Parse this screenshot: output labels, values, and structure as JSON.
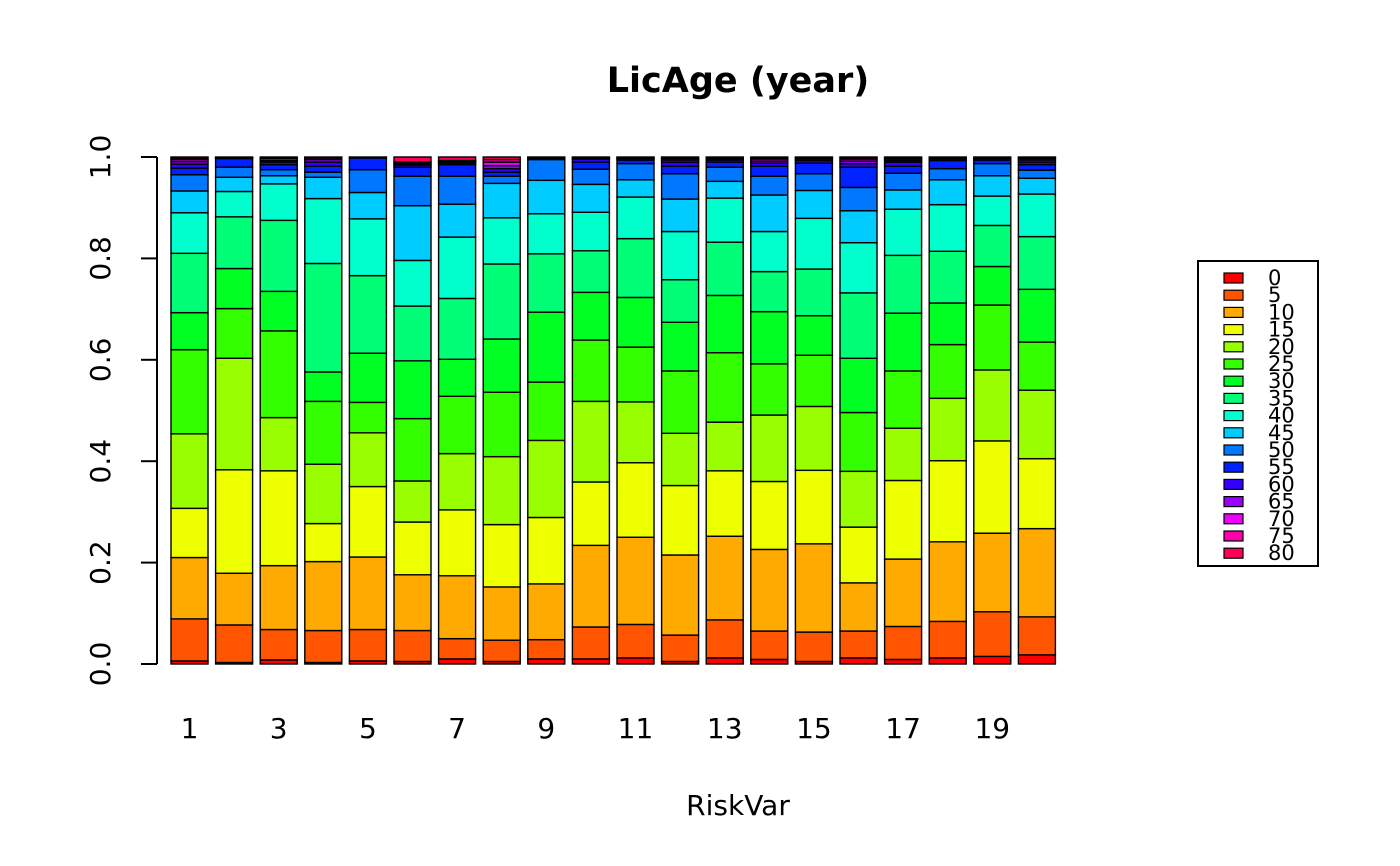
{
  "chart_data": {
    "type": "bar",
    "stacked": true,
    "title": "LicAge (year)",
    "xlabel": "RiskVar",
    "ylabel": "",
    "ylim": [
      0,
      1
    ],
    "yticks": [
      "0.0",
      "0.2",
      "0.4",
      "0.6",
      "0.8",
      "1.0"
    ],
    "yticks_values": [
      0,
      0.2,
      0.4,
      0.6,
      0.8,
      1.0
    ],
    "categories": [
      "1",
      "2",
      "3",
      "4",
      "5",
      "6",
      "7",
      "8",
      "9",
      "10",
      "11",
      "12",
      "13",
      "14",
      "15",
      "16",
      "17",
      "18",
      "19",
      "20"
    ],
    "xtick_labels": [
      "1",
      "3",
      "5",
      "7",
      "9",
      "11",
      "13",
      "15",
      "17",
      "19"
    ],
    "legend_position": "right",
    "legend": [
      "0",
      "5",
      "10",
      "15",
      "20",
      "25",
      "30",
      "35",
      "40",
      "45",
      "50",
      "55",
      "60",
      "65",
      "70",
      "75",
      "80"
    ],
    "colors": [
      "#FF0000",
      "#FF5500",
      "#FFAA00",
      "#EEFF00",
      "#99FF00",
      "#33FF00",
      "#00FF22",
      "#00FF77",
      "#00FFCC",
      "#00CCFF",
      "#0077FF",
      "#0022FF",
      "#3300FF",
      "#9900FF",
      "#EE00FF",
      "#FF00AA",
      "#FF0055"
    ],
    "cumulative": [
      [
        0.006,
        0.089,
        0.21,
        0.307,
        0.454,
        0.62,
        0.693,
        0.81,
        0.89,
        0.933,
        0.965,
        0.978,
        0.986,
        0.991,
        0.995,
        0.998,
        1
      ],
      [
        0.003,
        0.077,
        0.179,
        0.383,
        0.603,
        0.701,
        0.78,
        0.882,
        0.932,
        0.96,
        0.98,
        0.997,
        0.997,
        0.998,
        0.999,
        1,
        1
      ],
      [
        0.008,
        0.068,
        0.194,
        0.381,
        0.486,
        0.657,
        0.735,
        0.875,
        0.947,
        0.963,
        0.975,
        0.985,
        0.99,
        0.993,
        0.997,
        0.999,
        1
      ],
      [
        0.003,
        0.066,
        0.202,
        0.277,
        0.394,
        0.518,
        0.576,
        0.79,
        0.918,
        0.96,
        0.97,
        0.982,
        0.99,
        0.995,
        0.998,
        0.999,
        1
      ],
      [
        0.006,
        0.068,
        0.211,
        0.35,
        0.456,
        0.516,
        0.613,
        0.766,
        0.878,
        0.93,
        0.975,
        0.998,
        1,
        1,
        1,
        1,
        1
      ],
      [
        0.005,
        0.066,
        0.176,
        0.28,
        0.361,
        0.484,
        0.598,
        0.706,
        0.796,
        0.904,
        0.962,
        0.98,
        0.984,
        0.987,
        0.99,
        0.99,
        1
      ],
      [
        0.01,
        0.05,
        0.174,
        0.304,
        0.415,
        0.528,
        0.601,
        0.721,
        0.842,
        0.907,
        0.962,
        0.985,
        0.988,
        0.99,
        0.992,
        0.993,
        1
      ],
      [
        0.005,
        0.047,
        0.152,
        0.275,
        0.409,
        0.536,
        0.641,
        0.789,
        0.88,
        0.948,
        0.962,
        0.97,
        0.977,
        0.983,
        0.99,
        0.995,
        1
      ],
      [
        0.01,
        0.048,
        0.158,
        0.289,
        0.441,
        0.556,
        0.694,
        0.809,
        0.888,
        0.954,
        0.995,
        0.997,
        0.998,
        0.999,
        1,
        1,
        1
      ],
      [
        0.01,
        0.073,
        0.234,
        0.359,
        0.518,
        0.639,
        0.733,
        0.815,
        0.891,
        0.946,
        0.976,
        0.99,
        0.996,
        0.998,
        0.999,
        1,
        1
      ],
      [
        0.012,
        0.078,
        0.25,
        0.397,
        0.517,
        0.625,
        0.723,
        0.839,
        0.921,
        0.955,
        0.987,
        0.994,
        0.997,
        0.998,
        0.999,
        1,
        1
      ],
      [
        0.005,
        0.057,
        0.215,
        0.352,
        0.455,
        0.578,
        0.674,
        0.758,
        0.853,
        0.917,
        0.967,
        0.982,
        0.99,
        0.994,
        0.997,
        0.999,
        1
      ],
      [
        0.012,
        0.087,
        0.252,
        0.381,
        0.477,
        0.614,
        0.727,
        0.832,
        0.919,
        0.952,
        0.98,
        0.99,
        0.994,
        0.996,
        0.998,
        0.999,
        1
      ],
      [
        0.009,
        0.065,
        0.226,
        0.36,
        0.491,
        0.592,
        0.695,
        0.774,
        0.853,
        0.925,
        0.962,
        0.982,
        0.988,
        0.992,
        0.996,
        0.998,
        1
      ],
      [
        0.005,
        0.063,
        0.237,
        0.382,
        0.508,
        0.609,
        0.687,
        0.779,
        0.879,
        0.934,
        0.967,
        0.988,
        0.993,
        0.996,
        0.998,
        0.999,
        1
      ],
      [
        0.012,
        0.065,
        0.16,
        0.27,
        0.38,
        0.496,
        0.603,
        0.732,
        0.831,
        0.894,
        0.94,
        0.98,
        0.987,
        0.992,
        0.996,
        0.999,
        1
      ],
      [
        0.009,
        0.074,
        0.207,
        0.362,
        0.465,
        0.578,
        0.692,
        0.806,
        0.897,
        0.935,
        0.968,
        0.982,
        0.99,
        0.993,
        0.996,
        0.998,
        1
      ],
      [
        0.012,
        0.084,
        0.241,
        0.401,
        0.524,
        0.63,
        0.712,
        0.814,
        0.906,
        0.955,
        0.977,
        0.993,
        0.996,
        0.998,
        0.999,
        1,
        1
      ],
      [
        0.015,
        0.103,
        0.258,
        0.44,
        0.58,
        0.708,
        0.784,
        0.865,
        0.923,
        0.963,
        0.987,
        0.994,
        0.997,
        0.998,
        0.999,
        1,
        1
      ],
      [
        0.018,
        0.093,
        0.267,
        0.405,
        0.54,
        0.635,
        0.739,
        0.843,
        0.927,
        0.958,
        0.974,
        0.985,
        0.99,
        0.994,
        0.997,
        0.999,
        1
      ]
    ]
  }
}
